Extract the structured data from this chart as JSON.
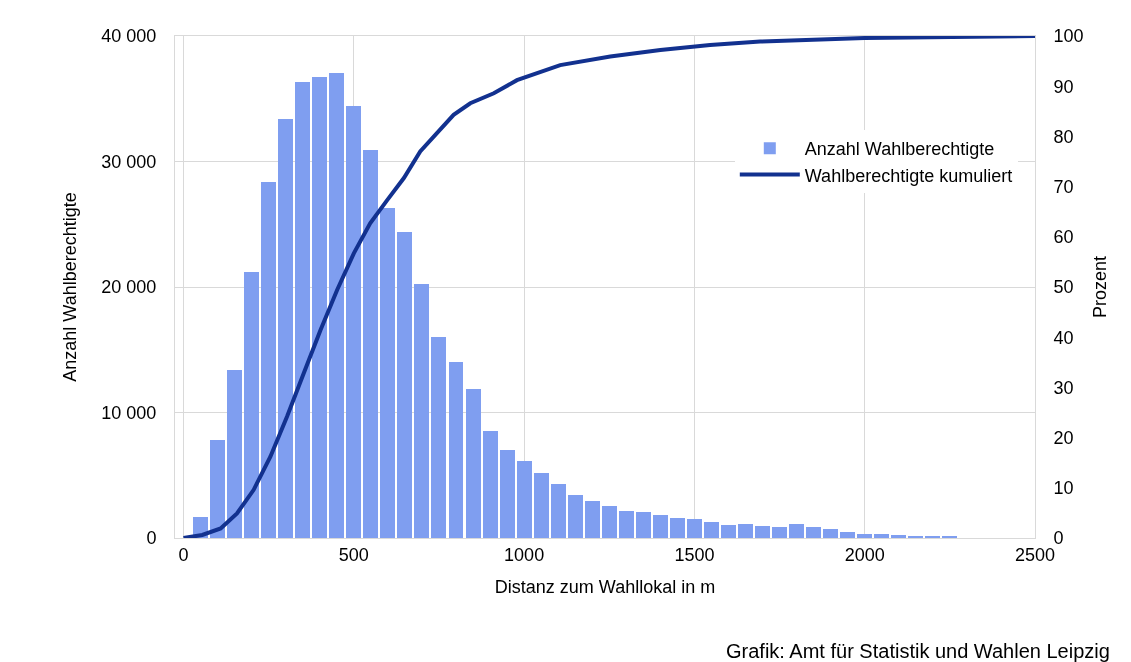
{
  "chart_data": {
    "type": "histogram",
    "xlabel": "Distanz zum Wahllokal in m",
    "ylabel": "Anzahl Wahlberechtigte",
    "y2label": "Prozent",
    "annotations": [
      "Grafik: Amt für Statistik und Wahlen Leipzig"
    ],
    "bins": [
      25,
      75,
      125,
      175,
      225,
      275,
      325,
      375,
      425,
      475,
      525,
      575,
      625,
      675,
      725,
      775,
      825,
      875,
      925,
      975,
      1025,
      1075,
      1125,
      1175,
      1225,
      1275,
      1325,
      1375,
      1425,
      1475,
      1525,
      1575,
      1625,
      1675,
      1725,
      1775,
      1825,
      1875,
      1925,
      1975,
      2025,
      2075,
      2125,
      2175,
      2225,
      2275
    ],
    "series": [
      {
        "name": "Anzahl Wahlberechtigte",
        "type": "histogram",
        "color": "#7f9ef0",
        "values": [
          1700,
          7800,
          13400,
          21200,
          28400,
          33400,
          36300,
          36700,
          37050,
          34400,
          30900,
          26300,
          24400,
          20200,
          16000,
          14000,
          11900,
          8500,
          7000,
          6100,
          5200,
          4300,
          3400,
          2950,
          2550,
          2150,
          2050,
          1800,
          1600,
          1500,
          1250,
          1000,
          1100,
          950,
          900,
          1100,
          850,
          700,
          500,
          300,
          300,
          200,
          150,
          100,
          100
        ]
      },
      {
        "name": "Wahlberechtigte kumuliert",
        "type": "line",
        "axis": "y2",
        "color": "#12318f",
        "x": [
          0,
          55,
          109,
          157,
          206,
          255,
          304,
          353,
          402,
          451,
          500,
          548,
          598,
          647,
          695,
          793,
          842,
          911,
          979,
          1106,
          1253,
          1400,
          1546,
          1693,
          2000,
          2500
        ],
        "values": [
          0,
          0.6,
          1.9,
          4.9,
          9.6,
          16.2,
          24.2,
          32.8,
          41.4,
          49.4,
          56.7,
          62.7,
          67.3,
          71.7,
          77,
          84.3,
          86.6,
          88.6,
          91.2,
          94.2,
          95.9,
          97.2,
          98.2,
          98.9,
          99.6,
          100
        ]
      }
    ],
    "xlim": [
      -25,
      2500
    ],
    "xticks": [
      0,
      500,
      1000,
      1500,
      2000,
      2500
    ],
    "ylim": [
      0,
      40000
    ],
    "yticks": [
      {
        "value": 0,
        "label": "0"
      },
      {
        "value": 10000,
        "label": "10 000"
      },
      {
        "value": 20000,
        "label": "20 000"
      },
      {
        "value": 30000,
        "label": "30 000"
      },
      {
        "value": 40000,
        "label": "40 000"
      }
    ],
    "y2lim": [
      0,
      100
    ],
    "y2ticks": [
      0,
      10,
      20,
      30,
      40,
      50,
      60,
      70,
      80,
      90,
      100
    ],
    "grid": true,
    "legend": "right",
    "line_style": "solid",
    "marker": "none"
  }
}
